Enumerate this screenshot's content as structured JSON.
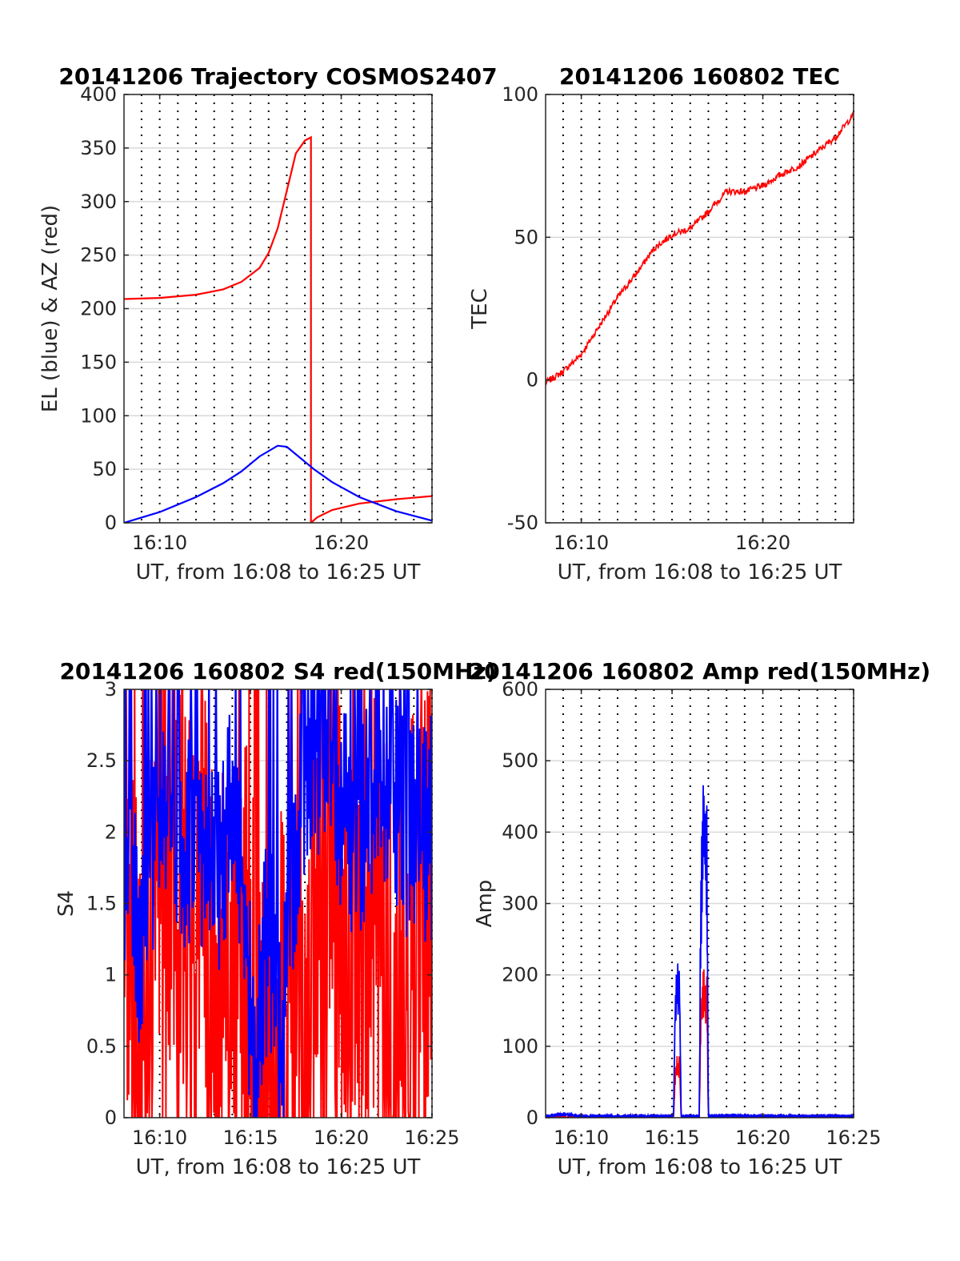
{
  "chart_data": [
    {
      "type": "line",
      "title": "20141206 Trajectory COSMOS2407",
      "xlabel": "UT, from 16:08 to 16:25 UT",
      "ylabel": "EL (blue) & AZ (red)",
      "xlim": [
        "16:08:02",
        "16:25:00"
      ],
      "ylim": [
        0,
        400
      ],
      "xticks": [
        "16:10",
        "16:20"
      ],
      "yticks": [
        0,
        50,
        100,
        150,
        200,
        250,
        300,
        350,
        400
      ],
      "grid": true,
      "series": [
        {
          "color": "#ff0000",
          "x": [
            "16:08:02",
            "16:10:00",
            "16:12:00",
            "16:13:30",
            "16:14:30",
            "16:15:30",
            "16:16:00",
            "16:16:30",
            "16:17:00",
            "16:17:30",
            "16:18:00",
            "16:18:20",
            "16:18:20",
            "16:18:40",
            "16:19:30",
            "16:21:00",
            "16:23:00",
            "16:25:00"
          ],
          "values": [
            209,
            210,
            213,
            218,
            225,
            238,
            252,
            275,
            310,
            345,
            357,
            360,
            0,
            5,
            12,
            18,
            22,
            25
          ]
        },
        {
          "color": "#0000ff",
          "x": [
            "16:08:02",
            "16:10:00",
            "16:12:00",
            "16:13:30",
            "16:14:30",
            "16:15:30",
            "16:16:30",
            "16:17:00",
            "16:17:30",
            "16:18:30",
            "16:19:30",
            "16:21:00",
            "16:23:00",
            "16:25:00"
          ],
          "values": [
            0,
            10,
            24,
            37,
            48,
            62,
            72,
            71,
            64,
            50,
            38,
            24,
            11,
            2
          ]
        }
      ]
    },
    {
      "type": "line",
      "title": "20141206 160802 TEC",
      "xlabel": "UT, from 16:08 to 16:25 UT",
      "ylabel": "TEC",
      "xlim": [
        "16:08:02",
        "16:25:00"
      ],
      "ylim": [
        -50,
        100
      ],
      "xticks": [
        "16:10",
        "16:20"
      ],
      "yticks": [
        -50,
        0,
        50,
        100
      ],
      "grid": true,
      "series": [
        {
          "color": "#ff0000",
          "x": [
            "16:08:02",
            "16:09:00",
            "16:10:00",
            "16:11:00",
            "16:12:00",
            "16:13:00",
            "16:14:00",
            "16:15:00",
            "16:16:00",
            "16:17:00",
            "16:18:00",
            "16:19:00",
            "16:20:00",
            "16:21:00",
            "16:22:00",
            "16:23:00",
            "16:24:00",
            "16:25:00"
          ],
          "values": [
            -1,
            3,
            9,
            19,
            29,
            37,
            46,
            51,
            53,
            59,
            66,
            66,
            68,
            72,
            75,
            80,
            85,
            93
          ]
        }
      ]
    },
    {
      "type": "line",
      "title": "20141206 160802 S4 red(150MHz)",
      "xlabel": "UT, from 16:08 to 16:25 UT",
      "ylabel": "S4",
      "xlim": [
        "16:08:02",
        "16:25:00"
      ],
      "ylim": [
        0,
        3
      ],
      "xticks": [
        "16:10",
        "16:15",
        "16:20",
        "16:25"
      ],
      "yticks": [
        0,
        0.5,
        1,
        1.5,
        2,
        2.5,
        3
      ],
      "grid": true,
      "series": [
        {
          "color": "#ff0000",
          "x": [
            "16:08:02",
            "16:09:00",
            "16:10:00",
            "16:11:00",
            "16:12:00",
            "16:13:00",
            "16:14:00",
            "16:15:00",
            "16:15:30",
            "16:16:00",
            "16:16:30",
            "16:17:00",
            "16:18:00",
            "16:19:00",
            "16:20:00",
            "16:21:00",
            "16:22:00",
            "16:23:00",
            "16:24:00",
            "16:25:00"
          ],
          "values": [
            1.2,
            0.8,
            2.2,
            1.6,
            1.9,
            0.9,
            1.2,
            1.0,
            0.1,
            0.8,
            0.5,
            1.4,
            0.0,
            2.4,
            1.5,
            0.8,
            1.8,
            0.6,
            1.3,
            1.6
          ]
        },
        {
          "color": "#0000ff",
          "x": [
            "16:08:02",
            "16:09:00",
            "16:10:00",
            "16:11:00",
            "16:12:00",
            "16:13:00",
            "16:14:00",
            "16:14:30",
            "16:15:00",
            "16:15:20",
            "16:15:40",
            "16:16:00",
            "16:16:30",
            "16:16:45",
            "16:17:00",
            "16:18:00",
            "16:19:00",
            "16:20:00",
            "16:21:00",
            "16:22:00",
            "16:23:00",
            "16:24:00",
            "16:25:00"
          ],
          "values": [
            1.6,
            1.2,
            2.3,
            1.7,
            2.0,
            1.6,
            2.2,
            1.8,
            0.7,
            0.1,
            1.0,
            1.3,
            0.7,
            0.1,
            1.3,
            2.5,
            2.6,
            2.1,
            1.9,
            2.4,
            2.2,
            1.9,
            2.0
          ]
        }
      ]
    },
    {
      "type": "line",
      "title": "20141206 160802 Amp red(150MHz)",
      "xlabel": "UT, from 16:08 to 16:25 UT",
      "ylabel": "Amp",
      "xlim": [
        "16:08:02",
        "16:25:00"
      ],
      "ylim": [
        0,
        600
      ],
      "xticks": [
        "16:10",
        "16:15",
        "16:20",
        "16:25"
      ],
      "yticks": [
        0,
        100,
        200,
        300,
        400,
        500,
        600
      ],
      "grid": true,
      "series": [
        {
          "color": "#ff0000",
          "x": [
            "16:08:02",
            "16:15:05",
            "16:15:10",
            "16:15:15",
            "16:15:25",
            "16:15:30",
            "16:16:30",
            "16:16:35",
            "16:16:45",
            "16:16:55",
            "16:17:00",
            "16:25:00"
          ],
          "values": [
            0,
            0,
            60,
            75,
            70,
            0,
            0,
            150,
            175,
            170,
            0,
            0
          ]
        },
        {
          "color": "#0000ff",
          "x": [
            "16:08:02",
            "16:09:00",
            "16:10:00",
            "16:15:05",
            "16:15:10",
            "16:15:15",
            "16:15:20",
            "16:15:25",
            "16:15:30",
            "16:16:30",
            "16:16:35",
            "16:16:40",
            "16:16:45",
            "16:16:50",
            "16:16:55",
            "16:17:00",
            "16:18:00",
            "16:20:00",
            "16:25:00"
          ],
          "values": [
            2,
            5,
            2,
            2,
            150,
            175,
            180,
            165,
            2,
            2,
            300,
            360,
            435,
            380,
            350,
            2,
            3,
            2,
            2
          ]
        }
      ]
    }
  ]
}
